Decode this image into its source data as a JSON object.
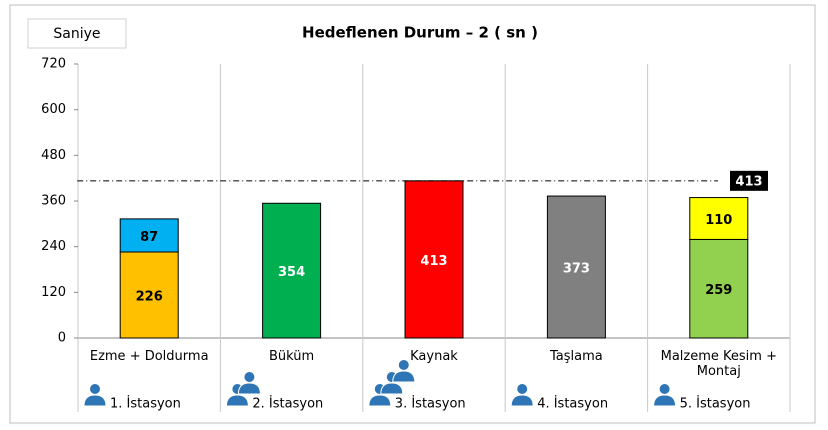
{
  "chart_data": {
    "type": "stacked_bar",
    "title": "Hedeflenen Durum – 2 ( sn )",
    "y_label": "Saniye",
    "categories": [
      "Ezme + Doldurma",
      "Büküm",
      "Kaynak",
      "Taşlama",
      "Malzeme Kesim + Montaj"
    ],
    "bars": [
      {
        "segments": [
          {
            "value": 226,
            "color": "#FFC000",
            "label_color": "#000000"
          },
          {
            "value": 87,
            "color": "#00B0F0",
            "label_color": "#000000"
          }
        ]
      },
      {
        "segments": [
          {
            "value": 354,
            "color": "#00B050",
            "label_color": "#ffffff"
          }
        ]
      },
      {
        "segments": [
          {
            "value": 413,
            "color": "#FF0000",
            "label_color": "#ffffff"
          }
        ]
      },
      {
        "segments": [
          {
            "value": 373,
            "color": "#808080",
            "label_color": "#ffffff"
          }
        ]
      },
      {
        "segments": [
          {
            "value": 259,
            "color": "#92D050",
            "label_color": "#000000"
          },
          {
            "value": 110,
            "color": "#FFFF00",
            "label_color": "#000000"
          }
        ]
      }
    ],
    "stations": [
      {
        "label": "1. İstasyon",
        "operators": 1
      },
      {
        "label": "2. İstasyon",
        "operators": 2
      },
      {
        "label": "3. İstasyon",
        "operators": 3
      },
      {
        "label": "4. İstasyon",
        "operators": 1
      },
      {
        "label": "5. İstasyon",
        "operators": 1
      }
    ],
    "target": 413,
    "ylim": [
      0,
      720
    ],
    "yticks": [
      0,
      120,
      240,
      360,
      480,
      600,
      720
    ]
  }
}
